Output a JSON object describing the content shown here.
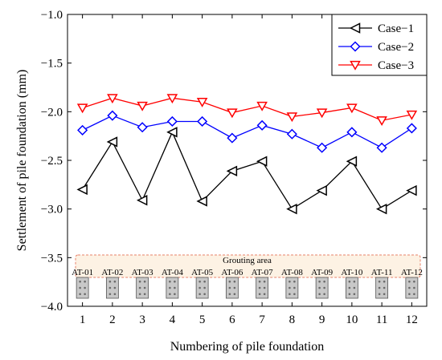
{
  "chart_data": {
    "type": "line",
    "xlabel": "Numbering of pile foundation",
    "ylabel": "Settlement of pile foundation (mm)",
    "x": [
      1,
      2,
      3,
      4,
      5,
      6,
      7,
      8,
      9,
      10,
      11,
      12
    ],
    "xlim": [
      0.5,
      12.5
    ],
    "ylim": [
      -4.0,
      -1.0
    ],
    "y_ticks": [
      -1.0,
      -1.5,
      -2.0,
      -2.5,
      -3.0,
      -3.5,
      -4.0
    ],
    "grid": false,
    "legend_position": "top-right",
    "series": [
      {
        "name": "Case−1",
        "marker": "triangle-left",
        "color": "#000000",
        "values": [
          -2.8,
          -2.31,
          -2.91,
          -2.21,
          -2.92,
          -2.61,
          -2.51,
          -3.0,
          -2.81,
          -2.51,
          -3.0,
          -2.81
        ]
      },
      {
        "name": "Case−2",
        "marker": "diamond",
        "color": "#0000ff",
        "values": [
          -2.19,
          -2.04,
          -2.16,
          -2.1,
          -2.1,
          -2.27,
          -2.14,
          -2.23,
          -2.37,
          -2.21,
          -2.37,
          -2.17
        ]
      },
      {
        "name": "Case−3",
        "marker": "triangle-down",
        "color": "#ff0000",
        "values": [
          -1.96,
          -1.86,
          -1.94,
          -1.86,
          -1.9,
          -2.01,
          -1.94,
          -2.05,
          -2.01,
          -1.96,
          -2.09,
          -2.03
        ]
      }
    ],
    "annotation": {
      "grouting_label": "Grouting area",
      "pile_labels": [
        "AT-01",
        "AT-02",
        "AT-03",
        "AT-04",
        "AT-05",
        "AT-06",
        "AT-07",
        "AT-08",
        "AT-09",
        "AT-10",
        "AT-11",
        "AT-12"
      ],
      "grouting_fill": "#fdf2e4",
      "grouting_border": "#e8826a",
      "pile_fill": "#c8c8c8"
    }
  }
}
